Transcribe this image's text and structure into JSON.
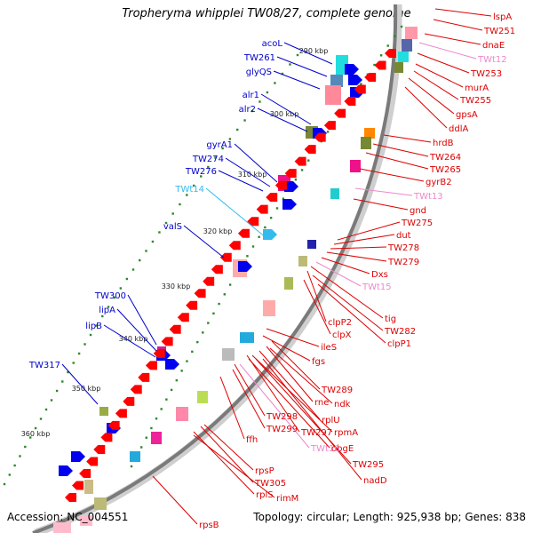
{
  "header": {
    "title": "Tropheryma whipplei TW08/27, complete genome"
  },
  "footer": {
    "accession": "Accession: NC_004551",
    "summary": "Topology: circular; Length: 925,938 bp; Genes: 838"
  },
  "colors": {
    "forward_label": "#0000cc",
    "reverse_label": "#dd0000",
    "trna_forward": "#33bbee",
    "trna_reverse": "#ee88cc",
    "forward_gene": "#0000ee",
    "reverse_gene": "#ff0000",
    "tick_dot": "#2a8a2a"
  },
  "ruler": {
    "ticks": [
      {
        "label": "290 kbp"
      },
      {
        "label": "300 kbp"
      },
      {
        "label": "310 kbp"
      },
      {
        "label": "320 kbp"
      },
      {
        "label": "330 kbp"
      },
      {
        "label": "340 kbp"
      },
      {
        "label": "350 kbp"
      },
      {
        "label": "360 kbp"
      }
    ]
  },
  "forward_genes": [
    {
      "label": "acoL"
    },
    {
      "label": "TW261"
    },
    {
      "label": "glyQS"
    },
    {
      "label": "alr1"
    },
    {
      "label": "alr2"
    },
    {
      "label": "gyrA1"
    },
    {
      "label": "TW274"
    },
    {
      "label": "TW276"
    },
    {
      "label": "TWt14"
    },
    {
      "label": "valS"
    },
    {
      "label": "TW300"
    },
    {
      "label": "lipA"
    },
    {
      "label": "lipB"
    },
    {
      "label": "TW317"
    }
  ],
  "reverse_genes": [
    {
      "label": "lspA"
    },
    {
      "label": "TW251"
    },
    {
      "label": "dnaE"
    },
    {
      "label": "TWt12"
    },
    {
      "label": "TW253"
    },
    {
      "label": "murA"
    },
    {
      "label": "TW255"
    },
    {
      "label": "gpsA"
    },
    {
      "label": "ddlA"
    },
    {
      "label": "hrdB"
    },
    {
      "label": "TW264"
    },
    {
      "label": "TW265"
    },
    {
      "label": "gyrB2"
    },
    {
      "label": "TWt13"
    },
    {
      "label": "gnd"
    },
    {
      "label": "TW275"
    },
    {
      "label": "dut"
    },
    {
      "label": "TW278"
    },
    {
      "label": "TW279"
    },
    {
      "label": "Dxs"
    },
    {
      "label": "TWt15"
    },
    {
      "label": "tig"
    },
    {
      "label": "clpP2"
    },
    {
      "label": "TW282"
    },
    {
      "label": "clpX"
    },
    {
      "label": "clpP1"
    },
    {
      "label": "ileS"
    },
    {
      "label": "fgs"
    },
    {
      "label": "TW289"
    },
    {
      "label": "rne"
    },
    {
      "label": "ndk"
    },
    {
      "label": "rplU"
    },
    {
      "label": "TW298"
    },
    {
      "label": "TW299"
    },
    {
      "label": "TW297"
    },
    {
      "label": "rpmA"
    },
    {
      "label": "ffh"
    },
    {
      "label": "obgE"
    },
    {
      "label": "TWt16"
    },
    {
      "label": "TW295"
    },
    {
      "label": "nadD"
    },
    {
      "label": "rpsP"
    },
    {
      "label": "TW305"
    },
    {
      "label": "rplS"
    },
    {
      "label": "rimM"
    },
    {
      "label": "rpsB"
    }
  ]
}
